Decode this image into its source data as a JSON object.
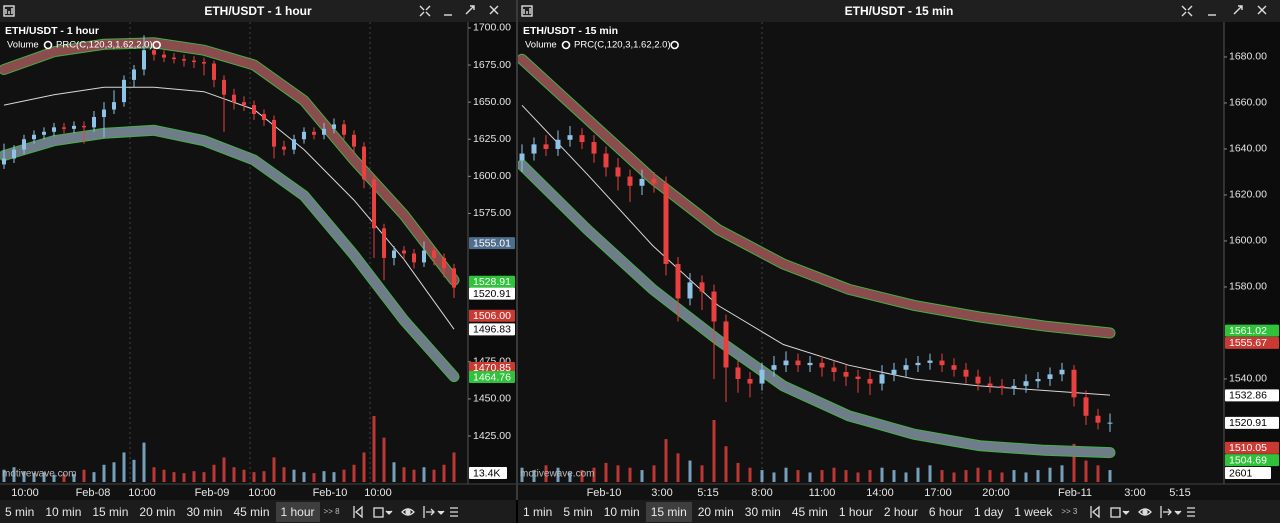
{
  "colors": {
    "up": "#8ec3e6",
    "down": "#e8413f",
    "upper_band": "#8a4c4c",
    "lower_band": "#6f7d8a",
    "band_edge": "#45b045",
    "middle": "#d8d8d8"
  },
  "panels": [
    {
      "title": "ETH/USDT - 1 hour",
      "legend": {
        "symbol": "ETH/USDT - 1 hour",
        "volume": "Volume",
        "indicator": "PRC(C,120,3,1.62,2.0)"
      },
      "watermark": "motivewave.com",
      "ylim": [
        1394,
        1704
      ],
      "yticks": [
        {
          "value": 1700,
          "label": "1700.00"
        },
        {
          "value": 1675,
          "label": "1675.00"
        },
        {
          "value": 1650,
          "label": "1650.00"
        },
        {
          "value": 1625,
          "label": "1625.00"
        },
        {
          "value": 1600,
          "label": "1600.00"
        },
        {
          "value": 1575,
          "label": "1575.00"
        },
        {
          "value": 1475,
          "label": "1475.00"
        },
        {
          "value": 1450,
          "label": "1450.00"
        },
        {
          "value": 1425,
          "label": "1425.00"
        }
      ],
      "price_labels": [
        {
          "value": 1555.01,
          "label": "1555.01",
          "color": "#4f6d8c"
        },
        {
          "value": 1528.91,
          "label": "1528.91",
          "color": "#2fc23a"
        },
        {
          "value": 1520.91,
          "label": "1520.91",
          "color": "#ffffff"
        },
        {
          "value": 1506.0,
          "label": "1506.00",
          "color": "#c83a32"
        },
        {
          "value": 1496.83,
          "label": "1496.83",
          "color": "#ffffff"
        },
        {
          "value": 1470.85,
          "label": "1470.85",
          "color": "#c83a32"
        },
        {
          "value": 1464.76,
          "label": "1464.76",
          "color": "#2fc23a"
        }
      ],
      "volume_label": "13.4K",
      "x_labels": [
        "10:00",
        "Feb-08",
        "10:00",
        "Feb-09",
        "10:00",
        "Feb-10",
        "10:00"
      ],
      "candles": [
        [
          1608,
          1622,
          1605,
          1612
        ],
        [
          1612,
          1621,
          1609,
          1618
        ],
        [
          1618,
          1628,
          1615,
          1625
        ],
        [
          1625,
          1631,
          1622,
          1628
        ],
        [
          1628,
          1633,
          1625,
          1630
        ],
        [
          1630,
          1636,
          1627,
          1633
        ],
        [
          1633,
          1636,
          1629,
          1632
        ],
        [
          1632,
          1637,
          1629,
          1634
        ],
        [
          1634,
          1637,
          1622,
          1633
        ],
        [
          1633,
          1644,
          1630,
          1640
        ],
        [
          1640,
          1650,
          1626,
          1645
        ],
        [
          1645,
          1658,
          1642,
          1650
        ],
        [
          1650,
          1668,
          1647,
          1665
        ],
        [
          1665,
          1675,
          1660,
          1672
        ],
        [
          1672,
          1695,
          1668,
          1685
        ],
        [
          1685,
          1688,
          1678,
          1682
        ],
        [
          1682,
          1685,
          1677,
          1680
        ],
        [
          1680,
          1683,
          1676,
          1679
        ],
        [
          1679,
          1682,
          1674,
          1678
        ],
        [
          1678,
          1681,
          1673,
          1677
        ],
        [
          1677,
          1680,
          1668,
          1676
        ],
        [
          1676,
          1678,
          1660,
          1665
        ],
        [
          1665,
          1668,
          1630,
          1655
        ],
        [
          1655,
          1659,
          1645,
          1650
        ],
        [
          1650,
          1654,
          1644,
          1648
        ],
        [
          1648,
          1651,
          1638,
          1642
        ],
        [
          1642,
          1645,
          1634,
          1638
        ],
        [
          1638,
          1641,
          1612,
          1620
        ],
        [
          1620,
          1624,
          1614,
          1618
        ],
        [
          1618,
          1628,
          1615,
          1625
        ],
        [
          1625,
          1633,
          1622,
          1630
        ],
        [
          1630,
          1633,
          1625,
          1628
        ],
        [
          1628,
          1636,
          1625,
          1632
        ],
        [
          1632,
          1639,
          1629,
          1635
        ],
        [
          1635,
          1638,
          1625,
          1628
        ],
        [
          1628,
          1631,
          1615,
          1620
        ],
        [
          1620,
          1623,
          1592,
          1598
        ],
        [
          1598,
          1601,
          1545,
          1565
        ],
        [
          1565,
          1568,
          1530,
          1545
        ],
        [
          1545,
          1553,
          1540,
          1550
        ],
        [
          1550,
          1553,
          1544,
          1548
        ],
        [
          1548,
          1551,
          1538,
          1542
        ],
        [
          1542,
          1556,
          1539,
          1550
        ],
        [
          1550,
          1553,
          1540,
          1545
        ],
        [
          1545,
          1548,
          1532,
          1538
        ],
        [
          1538,
          1541,
          1518,
          1525
        ]
      ],
      "volumes": [
        2500,
        3000,
        2200,
        1800,
        2000,
        1500,
        1700,
        1600,
        2500,
        2000,
        3500,
        4000,
        6000,
        4500,
        8000,
        3000,
        2500,
        2000,
        1800,
        2200,
        2000,
        3500,
        5000,
        3000,
        2500,
        2000,
        2200,
        5000,
        3000,
        2500,
        2000,
        1800,
        2200,
        2000,
        2500,
        3500,
        6000,
        13400,
        9000,
        4000,
        3000,
        2500,
        3000,
        2500,
        3500,
        6000
      ],
      "bands": {
        "upper": [
          1672,
          1684,
          1689,
          1690,
          1685,
          1675,
          1651,
          1611,
          1574,
          1530
        ],
        "middle": [
          1648,
          1655,
          1660,
          1660,
          1657,
          1645,
          1618,
          1584,
          1544,
          1497
        ],
        "lower": [
          1614,
          1624,
          1629,
          1631,
          1624,
          1611,
          1587,
          1547,
          1503,
          1465
        ]
      },
      "timeframes": [
        "5 min",
        "10 min",
        "15 min",
        "20 min",
        "30 min",
        "45 min",
        "1 hour"
      ],
      "selected_timeframe": 6,
      "more": ">> 8"
    },
    {
      "title": "ETH/USDT - 15 min",
      "legend": {
        "symbol": "ETH/USDT - 15 min",
        "volume": "Volume",
        "indicator": "PRC(C,120,3,1.62,2.0)"
      },
      "watermark": "motivewave.com",
      "ylim": [
        1495.2,
        1695.2
      ],
      "yticks": [
        {
          "value": 1680,
          "label": "1680.00"
        },
        {
          "value": 1660,
          "label": "1660.00"
        },
        {
          "value": 1640,
          "label": "1640.00"
        },
        {
          "value": 1620,
          "label": "1620.00"
        },
        {
          "value": 1600,
          "label": "1600.00"
        },
        {
          "value": 1580,
          "label": "1580.00"
        },
        {
          "value": 1540,
          "label": "1540.00"
        }
      ],
      "price_labels": [
        {
          "value": 1561.02,
          "label": "1561.02",
          "color": "#2fc23a"
        },
        {
          "value": 1555.67,
          "label": "1555.67",
          "color": "#c83a32"
        },
        {
          "value": 1532.86,
          "label": "1532.86",
          "color": "#ffffff"
        },
        {
          "value": 1520.91,
          "label": "1520.91",
          "color": "#ffffff"
        },
        {
          "value": 1510.05,
          "label": "1510.05",
          "color": "#c83a32"
        },
        {
          "value": 1504.69,
          "label": "1504.69",
          "color": "#2fc23a"
        }
      ],
      "volume_label": "2601",
      "x_labels": [
        "Feb-10",
        "3:00",
        "5:15",
        "8:00",
        "11:00",
        "14:00",
        "17:00",
        "20:00",
        "Feb-11",
        "3:00",
        "5:15"
      ],
      "candles": [
        [
          1635,
          1642,
          1630,
          1638
        ],
        [
          1638,
          1645,
          1635,
          1642
        ],
        [
          1642,
          1646,
          1637,
          1640
        ],
        [
          1640,
          1648,
          1637,
          1644
        ],
        [
          1644,
          1650,
          1641,
          1646
        ],
        [
          1646,
          1649,
          1640,
          1643
        ],
        [
          1643,
          1646,
          1634,
          1638
        ],
        [
          1638,
          1641,
          1628,
          1632
        ],
        [
          1632,
          1636,
          1622,
          1628
        ],
        [
          1628,
          1631,
          1617,
          1624
        ],
        [
          1624,
          1631,
          1620,
          1627
        ],
        [
          1627,
          1630,
          1621,
          1625
        ],
        [
          1625,
          1628,
          1585,
          1590
        ],
        [
          1590,
          1593,
          1565,
          1575
        ],
        [
          1575,
          1586,
          1572,
          1582
        ],
        [
          1582,
          1585,
          1570,
          1578
        ],
        [
          1578,
          1581,
          1540,
          1565
        ],
        [
          1565,
          1568,
          1530,
          1545
        ],
        [
          1545,
          1548,
          1534,
          1540
        ],
        [
          1540,
          1543,
          1532,
          1538
        ],
        [
          1538,
          1547,
          1535,
          1544
        ],
        [
          1544,
          1550,
          1541,
          1546
        ],
        [
          1546,
          1552,
          1543,
          1548
        ],
        [
          1548,
          1551,
          1543,
          1546
        ],
        [
          1546,
          1550,
          1543,
          1547
        ],
        [
          1547,
          1550,
          1541,
          1545
        ],
        [
          1545,
          1548,
          1539,
          1543
        ],
        [
          1543,
          1546,
          1537,
          1541
        ],
        [
          1541,
          1544,
          1534,
          1540
        ],
        [
          1540,
          1543,
          1533,
          1538
        ],
        [
          1538,
          1546,
          1535,
          1542
        ],
        [
          1542,
          1547,
          1539,
          1544
        ],
        [
          1544,
          1549,
          1541,
          1546
        ],
        [
          1546,
          1550,
          1543,
          1547
        ],
        [
          1547,
          1551,
          1544,
          1548
        ],
        [
          1548,
          1551,
          1543,
          1546
        ],
        [
          1546,
          1549,
          1541,
          1544
        ],
        [
          1544,
          1547,
          1538,
          1541
        ],
        [
          1541,
          1544,
          1535,
          1538
        ],
        [
          1538,
          1541,
          1534,
          1537
        ],
        [
          1537,
          1540,
          1533,
          1536
        ],
        [
          1536,
          1540,
          1533,
          1537
        ],
        [
          1537,
          1542,
          1534,
          1539
        ],
        [
          1539,
          1543,
          1536,
          1540
        ],
        [
          1540,
          1545,
          1537,
          1542
        ],
        [
          1542,
          1547,
          1539,
          1544
        ],
        [
          1544,
          1546,
          1528,
          1532
        ],
        [
          1532,
          1535,
          1520,
          1524
        ],
        [
          1524,
          1527,
          1518,
          1521
        ],
        [
          1521,
          1525,
          1517,
          1521
        ]
      ],
      "volumes": [
        600,
        500,
        700,
        600,
        400,
        500,
        600,
        800,
        700,
        600,
        500,
        700,
        1800,
        1200,
        900,
        700,
        2601,
        1500,
        800,
        600,
        500,
        400,
        600,
        500,
        400,
        500,
        600,
        500,
        400,
        500,
        600,
        500,
        400,
        600,
        700,
        500,
        400,
        500,
        600,
        500,
        400,
        500,
        400,
        500,
        600,
        700,
        1600,
        900,
        700,
        500
      ],
      "bands": {
        "upper": [
          1679,
          1653,
          1627,
          1605,
          1590,
          1579,
          1572,
          1567,
          1563,
          1560
        ],
        "middle": [
          1659,
          1629,
          1598,
          1572,
          1555,
          1546,
          1540,
          1537,
          1535,
          1533
        ],
        "lower": [
          1633,
          1605,
          1579,
          1557,
          1537,
          1524,
          1516,
          1511,
          1509,
          1508
        ]
      },
      "timeframes": [
        "1 min",
        "5 min",
        "10 min",
        "15 min",
        "20 min",
        "30 min",
        "45 min",
        "1 hour",
        "2 hour",
        "6 hour",
        "1 day",
        "1 week"
      ],
      "selected_timeframe": 3,
      "more": ">> 3"
    }
  ]
}
